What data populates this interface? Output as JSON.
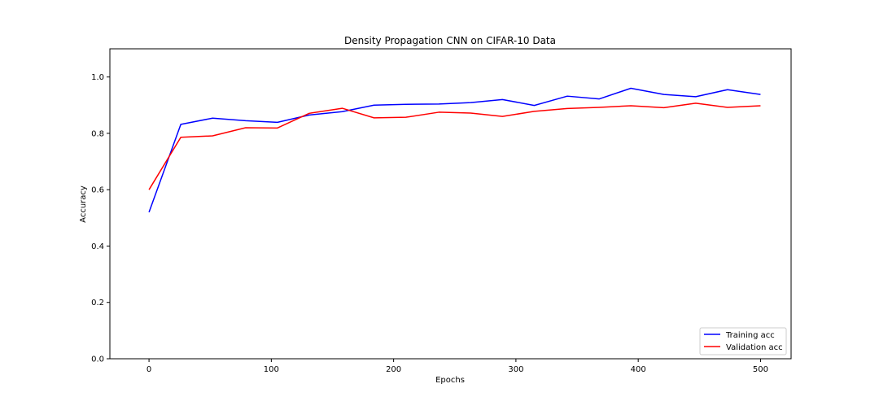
{
  "chart_data": {
    "type": "line",
    "title": "Density Propagation CNN on CIFAR-10 Data",
    "xlabel": "Epochs",
    "ylabel": "Accuracy",
    "xlim": [
      -32,
      525
    ],
    "ylim": [
      0.0,
      1.1
    ],
    "xticks": [
      0,
      100,
      200,
      300,
      400,
      500
    ],
    "yticks": [
      0.0,
      0.2,
      0.4,
      0.6,
      0.8,
      1.0
    ],
    "ytick_labels": [
      "0.0",
      "0.2",
      "0.4",
      "0.6",
      "0.8",
      "1.0"
    ],
    "grid": false,
    "legend_position": "lower-right",
    "x": [
      0,
      26,
      52,
      79,
      105,
      131,
      158,
      184,
      210,
      237,
      263,
      289,
      315,
      342,
      368,
      394,
      421,
      447,
      473,
      500
    ],
    "series": [
      {
        "name": "Training acc",
        "color": "#0000ff",
        "values": [
          0.52,
          0.832,
          0.854,
          0.845,
          0.839,
          0.865,
          0.877,
          0.9,
          0.903,
          0.904,
          0.909,
          0.92,
          0.899,
          0.932,
          0.922,
          0.96,
          0.938,
          0.93,
          0.955,
          0.938
        ]
      },
      {
        "name": "Validation acc",
        "color": "#ff0000",
        "values": [
          0.6,
          0.786,
          0.791,
          0.82,
          0.819,
          0.871,
          0.889,
          0.855,
          0.857,
          0.875,
          0.872,
          0.86,
          0.878,
          0.888,
          0.892,
          0.898,
          0.891,
          0.907,
          0.892,
          0.898
        ]
      }
    ]
  }
}
